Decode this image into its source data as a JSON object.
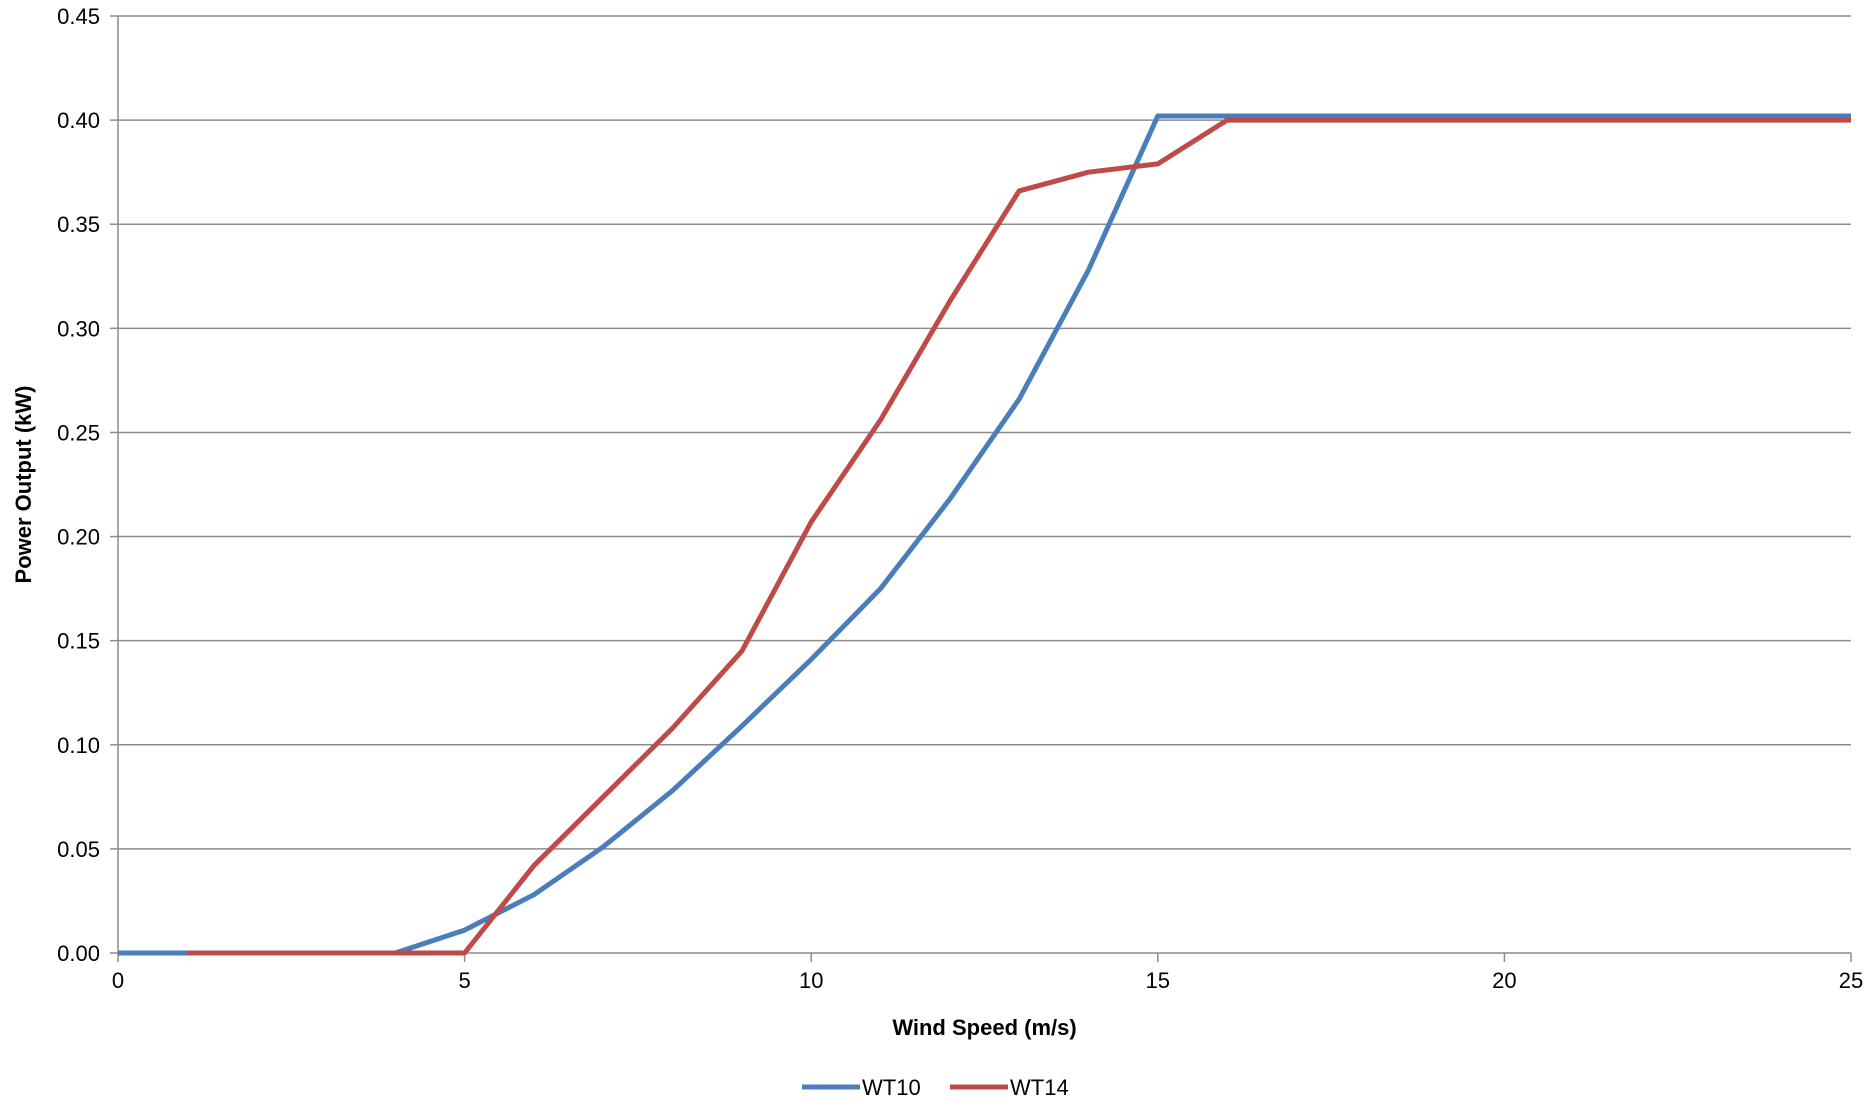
{
  "chart_data": {
    "type": "line",
    "title": "",
    "xlabel": "Wind Speed (m/s)",
    "ylabel": "Power Output (kW)",
    "xlim": [
      0,
      25
    ],
    "ylim": [
      0,
      0.45
    ],
    "x_ticks": [
      0,
      5,
      10,
      15,
      20,
      25
    ],
    "y_ticks": [
      "0.00",
      "0.05",
      "0.10",
      "0.15",
      "0.20",
      "0.25",
      "0.30",
      "0.35",
      "0.40",
      "0.45"
    ],
    "grid": "horizontal",
    "legend_position": "bottom",
    "series": [
      {
        "name": "WT10",
        "color": "#4a7ebb",
        "points": [
          [
            0,
            0.0
          ],
          [
            1,
            0.0
          ],
          [
            2,
            0.0
          ],
          [
            3,
            0.0
          ],
          [
            4,
            0.0
          ],
          [
            5,
            0.011
          ],
          [
            6,
            0.028
          ],
          [
            7,
            0.051
          ],
          [
            8,
            0.078
          ],
          [
            9,
            0.109
          ],
          [
            10,
            0.141
          ],
          [
            11,
            0.175
          ],
          [
            12,
            0.218
          ],
          [
            13,
            0.266
          ],
          [
            14,
            0.328
          ],
          [
            15,
            0.402
          ],
          [
            16,
            0.402
          ],
          [
            17,
            0.402
          ],
          [
            18,
            0.402
          ],
          [
            19,
            0.402
          ],
          [
            20,
            0.402
          ],
          [
            21,
            0.402
          ],
          [
            22,
            0.402
          ],
          [
            23,
            0.402
          ],
          [
            24,
            0.402
          ],
          [
            25,
            0.402
          ]
        ]
      },
      {
        "name": "WT14",
        "color": "#be4b48",
        "points": [
          [
            1,
            0.0
          ],
          [
            2,
            0.0
          ],
          [
            3,
            0.0
          ],
          [
            4,
            0.0
          ],
          [
            5,
            0.0
          ],
          [
            6,
            0.042
          ],
          [
            7,
            0.075
          ],
          [
            8,
            0.108
          ],
          [
            9,
            0.145
          ],
          [
            10,
            0.207
          ],
          [
            11,
            0.256
          ],
          [
            12,
            0.313
          ],
          [
            13,
            0.366
          ],
          [
            14,
            0.375
          ],
          [
            15,
            0.379
          ],
          [
            16,
            0.4
          ],
          [
            17,
            0.4
          ],
          [
            18,
            0.4
          ],
          [
            19,
            0.4
          ],
          [
            20,
            0.4
          ],
          [
            21,
            0.4
          ],
          [
            22,
            0.4
          ],
          [
            23,
            0.4
          ],
          [
            24,
            0.4
          ],
          [
            25,
            0.4
          ]
        ]
      }
    ]
  }
}
